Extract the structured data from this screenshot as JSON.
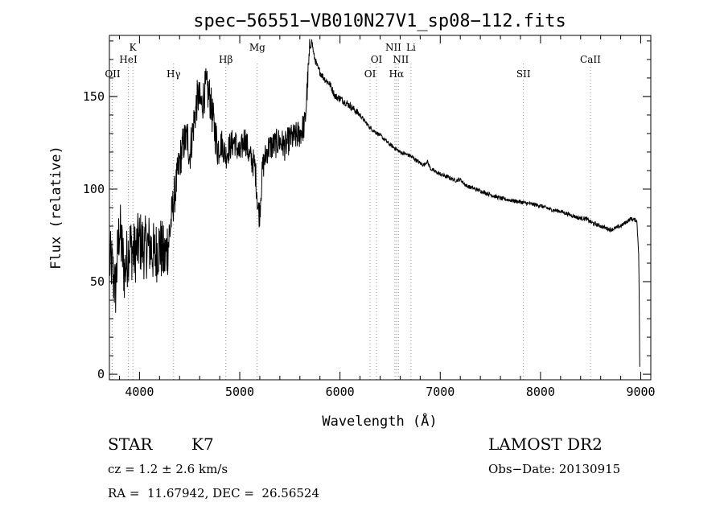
{
  "chart_data": {
    "type": "line",
    "title": "spec−56551−VB010N27V1_sp08−112.fits",
    "xlabel": "Wavelength (Å)",
    "ylabel": "Flux (relative)",
    "xlim": [
      3700,
      9100
    ],
    "ylim": [
      -3,
      183
    ],
    "x_ticks": [
      4000,
      5000,
      6000,
      7000,
      8000,
      9000
    ],
    "y_ticks": [
      0,
      50,
      100,
      150
    ],
    "grid": false,
    "line_color": "#000000",
    "marker_color": "#e07070",
    "spectrum_anchors": [
      [
        3720,
        60
      ],
      [
        3760,
        45
      ],
      [
        3800,
        80
      ],
      [
        3850,
        55
      ],
      [
        3900,
        70
      ],
      [
        3950,
        65
      ],
      [
        4000,
        72
      ],
      [
        4050,
        68
      ],
      [
        4100,
        70
      ],
      [
        4150,
        64
      ],
      [
        4200,
        70
      ],
      [
        4250,
        62
      ],
      [
        4300,
        75
      ],
      [
        4330,
        90
      ],
      [
        4360,
        100
      ],
      [
        4400,
        115
      ],
      [
        4440,
        125
      ],
      [
        4480,
        128
      ],
      [
        4500,
        118
      ],
      [
        4540,
        135
      ],
      [
        4580,
        150
      ],
      [
        4620,
        145
      ],
      [
        4660,
        155
      ],
      [
        4700,
        150
      ],
      [
        4740,
        135
      ],
      [
        4780,
        122
      ],
      [
        4820,
        125
      ],
      [
        4860,
        118
      ],
      [
        4900,
        123
      ],
      [
        4950,
        126
      ],
      [
        5000,
        118
      ],
      [
        5050,
        128
      ],
      [
        5100,
        117
      ],
      [
        5150,
        113
      ],
      [
        5180,
        98
      ],
      [
        5200,
        95
      ],
      [
        5230,
        112
      ],
      [
        5280,
        122
      ],
      [
        5350,
        124
      ],
      [
        5400,
        126
      ],
      [
        5450,
        123
      ],
      [
        5500,
        127
      ],
      [
        5550,
        128
      ],
      [
        5600,
        130
      ],
      [
        5650,
        135
      ],
      [
        5680,
        160
      ],
      [
        5700,
        176
      ],
      [
        5720,
        180
      ],
      [
        5740,
        172
      ],
      [
        5780,
        165
      ],
      [
        5850,
        159
      ],
      [
        5950,
        150
      ],
      [
        6000,
        149
      ],
      [
        6100,
        145
      ],
      [
        6200,
        140
      ],
      [
        6300,
        133
      ],
      [
        6400,
        129
      ],
      [
        6500,
        124
      ],
      [
        6600,
        120
      ],
      [
        6700,
        118
      ],
      [
        6800,
        114
      ],
      [
        6900,
        111
      ],
      [
        7000,
        108
      ],
      [
        7100,
        106
      ],
      [
        7200,
        103
      ],
      [
        7300,
        101
      ],
      [
        7400,
        99
      ],
      [
        7500,
        97
      ],
      [
        7600,
        95
      ],
      [
        7700,
        94
      ],
      [
        7800,
        93
      ],
      [
        7900,
        92
      ],
      [
        8000,
        91
      ],
      [
        8100,
        89
      ],
      [
        8200,
        88
      ],
      [
        8300,
        86
      ],
      [
        8400,
        84
      ],
      [
        8500,
        82
      ],
      [
        8600,
        80
      ],
      [
        8700,
        78
      ],
      [
        8800,
        80
      ],
      [
        8900,
        84
      ],
      [
        8960,
        83
      ],
      [
        8980,
        65
      ],
      [
        8990,
        5
      ]
    ],
    "spectrum_features": [
      [
        5190,
        -9,
        15
      ],
      [
        5900,
        2,
        25
      ],
      [
        6870,
        3,
        15
      ],
      [
        7200,
        2,
        25
      ],
      [
        8450,
        1,
        30
      ]
    ],
    "lines": [
      {
        "label": "OII",
        "x": 3727
      },
      {
        "label": "K",
        "x": 3934
      },
      {
        "label": "HeI",
        "x": 3889
      },
      {
        "label": "Hγ",
        "x": 4340
      },
      {
        "label": "Hβ",
        "x": 4861
      },
      {
        "label": "Mg",
        "x": 5175
      },
      {
        "label": "OI",
        "x": 6300
      },
      {
        "label": "OI",
        "x": 6364
      },
      {
        "label": "NII",
        "x": 6548
      },
      {
        "label": "Hα",
        "x": 6563
      },
      {
        "label": "NII",
        "x": 6583
      },
      {
        "label": "Li",
        "x": 6708
      },
      {
        "label": "SII",
        "x": 7830
      },
      {
        "label": "CaII",
        "x": 8498
      }
    ]
  },
  "info": {
    "object_class": "STAR",
    "subclass": "K7",
    "survey": "LAMOST DR2",
    "redshift": "cz = 1.2 ± 2.6 km/s",
    "obs_date": "Obs−Date: 20130915",
    "coords": "RA =  11.67942, DEC =  26.56524"
  }
}
